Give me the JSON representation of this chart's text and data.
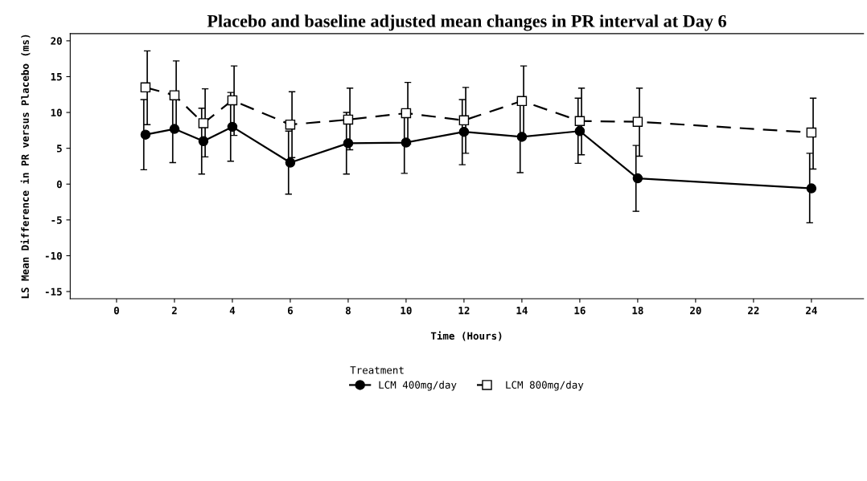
{
  "chart_data": {
    "type": "line",
    "title": "Placebo and baseline adjusted mean changes in PR interval at Day 6",
    "xlabel": "Time (Hours)",
    "ylabel": "LS Mean Difference in PR versus Placebo (ms)",
    "legend_title": "Treatment",
    "legend": "bottom",
    "grid": false,
    "xlim": [
      -1.6,
      25.8
    ],
    "ylim": [
      -16,
      21
    ],
    "xticks": [
      0,
      2,
      4,
      6,
      8,
      10,
      12,
      14,
      16,
      18,
      20,
      22,
      24
    ],
    "yticks": [
      -15,
      -10,
      -5,
      0,
      5,
      10,
      15,
      20
    ],
    "series": [
      {
        "name": "LCM 400mg/day",
        "color": "#000000",
        "marker": "circle",
        "line_style": "solid",
        "x": [
          1,
          2,
          3,
          4,
          6,
          8,
          10,
          12,
          14,
          16,
          18,
          24
        ],
        "values": [
          6.9,
          7.7,
          6.0,
          8.0,
          3.0,
          5.7,
          5.8,
          7.3,
          6.6,
          7.4,
          0.8,
          -0.6
        ],
        "errors": [
          [
            2.0,
            11.8
          ],
          [
            3.0,
            12.5
          ],
          [
            1.4,
            10.6
          ],
          [
            3.2,
            12.8
          ],
          [
            -1.4,
            7.4
          ],
          [
            1.4,
            10.0
          ],
          [
            1.5,
            10.2
          ],
          [
            2.7,
            11.8
          ],
          [
            1.6,
            11.6
          ],
          [
            2.9,
            12.0
          ],
          [
            -3.8,
            5.4
          ],
          [
            -5.4,
            4.3
          ]
        ]
      },
      {
        "name": "LCM 800mg/day",
        "color": "#000000",
        "marker": "square",
        "line_style": "dashed",
        "x": [
          1,
          2,
          3,
          4,
          6,
          8,
          10,
          12,
          14,
          16,
          18,
          24
        ],
        "values": [
          13.5,
          12.4,
          8.5,
          11.7,
          8.3,
          9.0,
          9.9,
          8.9,
          11.6,
          8.8,
          8.7,
          7.2
        ],
        "errors": [
          [
            8.3,
            18.6
          ],
          [
            7.6,
            17.2
          ],
          [
            3.8,
            13.3
          ],
          [
            6.8,
            16.5
          ],
          [
            3.7,
            12.9
          ],
          [
            4.8,
            13.4
          ],
          [
            5.6,
            14.2
          ],
          [
            4.3,
            13.5
          ],
          [
            6.7,
            16.5
          ],
          [
            4.1,
            13.4
          ],
          [
            3.9,
            13.4
          ],
          [
            2.1,
            12.0
          ]
        ]
      }
    ]
  }
}
